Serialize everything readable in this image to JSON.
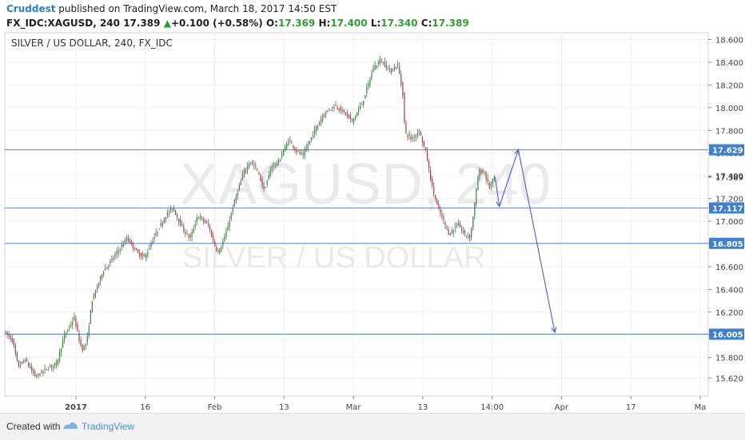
{
  "header": {
    "author": "Cruddest",
    "published": " published on TradingView.com, March 18, 2017 14:50 EST",
    "symbol": "FX_IDC:XAGUSD, 240",
    "last": "17.389",
    "change_arrow": "▲",
    "change": "+0.100 (+0.58%)",
    "o_label": "O:",
    "o": "17.369",
    "h_label": "H:",
    "h": "17.400",
    "l_label": "L:",
    "l": "17.340",
    "c_label": "C:",
    "c": "17.389"
  },
  "footer": {
    "created": "Created with",
    "brand": "TradingView"
  },
  "chart_data": {
    "type": "candlestick",
    "title": "SILVER / US DOLLAR, 240, FX_IDC",
    "watermark": [
      "XAGUSD, 240",
      "SILVER / US DOLLAR"
    ],
    "ylim": [
      15.46,
      18.66
    ],
    "y_ticks": [
      15.62,
      15.8,
      16.0,
      16.2,
      16.4,
      16.6,
      16.8,
      17.0,
      17.2,
      17.4,
      17.6,
      17.8,
      18.0,
      18.2,
      18.4,
      18.6
    ],
    "y_tick_format_decimals": 3,
    "x_ticks": [
      "2017",
      "16",
      "Feb",
      "13",
      "Mar",
      "13",
      "14:00",
      "Apr",
      "17",
      "Ma"
    ],
    "grid": true,
    "horizontal_levels": [
      {
        "value": 17.629,
        "label": "17.629"
      },
      {
        "value": 17.117,
        "label": "17.117"
      },
      {
        "value": 16.805,
        "label": "16.805"
      },
      {
        "value": 16.005,
        "label": "16.005"
      }
    ],
    "last_price": {
      "value": 17.389,
      "label": "17.389"
    },
    "colors": {
      "up": "#2f8f2f",
      "down": "#b33b3b",
      "levels": "#5a86c8",
      "projection": "#3d4fd8",
      "axis_badge": "#3d7fd0"
    },
    "price_path": [
      [
        0,
        16.03
      ],
      [
        0.012,
        15.95
      ],
      [
        0.02,
        15.72
      ],
      [
        0.03,
        15.78
      ],
      [
        0.045,
        15.63
      ],
      [
        0.06,
        15.7
      ],
      [
        0.075,
        15.75
      ],
      [
        0.085,
        15.98
      ],
      [
        0.1,
        16.15
      ],
      [
        0.108,
        15.92
      ],
      [
        0.112,
        15.87
      ],
      [
        0.118,
        15.95
      ],
      [
        0.125,
        16.3
      ],
      [
        0.14,
        16.55
      ],
      [
        0.16,
        16.72
      ],
      [
        0.175,
        16.85
      ],
      [
        0.19,
        16.72
      ],
      [
        0.2,
        16.68
      ],
      [
        0.215,
        16.88
      ],
      [
        0.23,
        17.05
      ],
      [
        0.24,
        17.12
      ],
      [
        0.255,
        16.92
      ],
      [
        0.265,
        16.85
      ],
      [
        0.275,
        17.05
      ],
      [
        0.29,
        16.97
      ],
      [
        0.3,
        16.78
      ],
      [
        0.305,
        16.72
      ],
      [
        0.315,
        16.88
      ],
      [
        0.325,
        17.12
      ],
      [
        0.34,
        17.42
      ],
      [
        0.35,
        17.53
      ],
      [
        0.36,
        17.45
      ],
      [
        0.37,
        17.27
      ],
      [
        0.38,
        17.48
      ],
      [
        0.39,
        17.52
      ],
      [
        0.405,
        17.72
      ],
      [
        0.415,
        17.62
      ],
      [
        0.425,
        17.58
      ],
      [
        0.44,
        17.78
      ],
      [
        0.455,
        17.95
      ],
      [
        0.47,
        18.02
      ],
      [
        0.485,
        17.95
      ],
      [
        0.495,
        17.88
      ],
      [
        0.51,
        18.05
      ],
      [
        0.525,
        18.35
      ],
      [
        0.535,
        18.42
      ],
      [
        0.55,
        18.32
      ],
      [
        0.56,
        18.38
      ],
      [
        0.567,
        18.12
      ],
      [
        0.57,
        17.78
      ],
      [
        0.58,
        17.72
      ],
      [
        0.59,
        17.8
      ],
      [
        0.6,
        17.6
      ],
      [
        0.608,
        17.32
      ],
      [
        0.615,
        17.15
      ],
      [
        0.625,
        17.0
      ],
      [
        0.633,
        16.88
      ],
      [
        0.645,
        16.98
      ],
      [
        0.655,
        16.88
      ],
      [
        0.663,
        16.86
      ],
      [
        0.67,
        17.2
      ],
      [
        0.675,
        17.45
      ],
      [
        0.683,
        17.42
      ],
      [
        0.69,
        17.3
      ],
      [
        0.697,
        17.39
      ]
    ],
    "projection_path": [
      [
        0.697,
        17.39
      ],
      [
        0.703,
        17.13
      ],
      [
        0.73,
        17.629
      ],
      [
        0.782,
        16.02
      ]
    ]
  }
}
